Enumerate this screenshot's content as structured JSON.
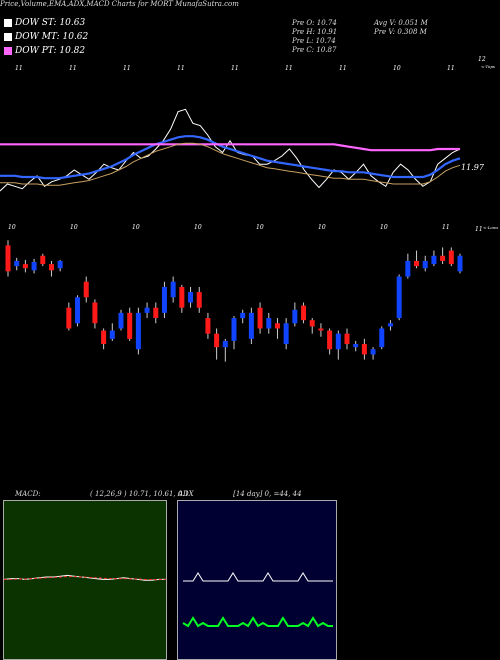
{
  "title": "Price,Volume,EMA,ADX,MACD Charts for MORT MunafaSutra.com",
  "legend": [
    {
      "label": "DOW ST: 10.63",
      "color": "#ffffff"
    },
    {
      "label": "DOW MT: 10.62",
      "color": "#ffffff"
    },
    {
      "label": "DOW PT: 10.82",
      "color": "#ff66ff"
    }
  ],
  "ohlc": {
    "open": "Pre   O: 10.74",
    "high": "Pre   H: 10.91",
    "low": "Pre   L: 10.74",
    "close": "Pre   C: 10.87",
    "avg_volume": "Avg V: 0.051  M",
    "prev_volume": "Pre   V: 0.308  M"
  },
  "macd_header": {
    "label": "MACD:",
    "values": "( 12,26,9 ) 10.71,  10.61,  0.1"
  },
  "adx_header": {
    "label": "ADX",
    "values": "[14  day] 0,  =44, 44"
  },
  "chart_data": [
    {
      "type": "line",
      "name": "price-ema-panel",
      "labels": {
        "top_right": "12",
        "top_right_sub": "<-Tops",
        "mid_right": "11.97",
        "bottom_right": "11",
        "bottom_right_sub": "<-Lows"
      },
      "top_ticks": [
        "11",
        "11",
        "11",
        "11",
        "11",
        "11",
        "11",
        "10",
        "11"
      ],
      "bottom_ticks": [
        "10",
        "10",
        "10",
        "10",
        "10",
        "10",
        "10",
        "11"
      ],
      "colors": {
        "close": "#ffffff",
        "ema_fast": "#3366ff",
        "ema_slow": "#ff66ff",
        "ema_mid": "#c8a060"
      },
      "series": [
        {
          "name": "close",
          "values": [
            11.62,
            11.68,
            11.66,
            11.64,
            11.7,
            11.75,
            11.66,
            11.7,
            11.72,
            11.75,
            11.8,
            11.76,
            11.72,
            11.78,
            11.85,
            11.82,
            11.8,
            11.88,
            11.95,
            11.9,
            11.92,
            11.98,
            12.05,
            12.15,
            12.3,
            12.32,
            12.2,
            12.18,
            12.1,
            12.0,
            11.95,
            12.05,
            11.95,
            11.93,
            11.92,
            11.85,
            11.85,
            11.88,
            11.92,
            11.98,
            11.9,
            11.8,
            11.72,
            11.65,
            11.72,
            11.8,
            11.78,
            11.72,
            11.78,
            11.85,
            11.75,
            11.7,
            11.66,
            11.78,
            11.85,
            11.8,
            11.72,
            11.66,
            11.7,
            11.85,
            11.9,
            11.95,
            11.98
          ]
        },
        {
          "name": "ema-fast",
          "values": [
            11.75,
            11.75,
            11.75,
            11.74,
            11.74,
            11.74,
            11.73,
            11.73,
            11.73,
            11.74,
            11.75,
            11.76,
            11.77,
            11.79,
            11.81,
            11.83,
            11.86,
            11.89,
            11.93,
            11.96,
            11.99,
            12.02,
            12.04,
            12.06,
            12.08,
            12.09,
            12.09,
            12.08,
            12.06,
            12.03,
            12.0,
            11.98,
            11.96,
            11.94,
            11.92,
            11.9,
            11.88,
            11.87,
            11.86,
            11.85,
            11.84,
            11.83,
            11.82,
            11.81,
            11.8,
            11.79,
            11.79,
            11.78,
            11.78,
            11.78,
            11.77,
            11.76,
            11.75,
            11.74,
            11.74,
            11.74,
            11.74,
            11.74,
            11.76,
            11.8,
            11.85,
            11.88,
            11.9
          ]
        },
        {
          "name": "ema-slow",
          "values": [
            12.02,
            12.02,
            12.02,
            12.02,
            12.02,
            12.02,
            12.02,
            12.02,
            12.02,
            12.02,
            12.02,
            12.02,
            12.02,
            12.02,
            12.02,
            12.02,
            12.02,
            12.02,
            12.02,
            12.02,
            12.02,
            12.02,
            12.02,
            12.02,
            12.02,
            12.02,
            12.02,
            12.02,
            12.02,
            12.02,
            12.02,
            12.02,
            12.02,
            12.02,
            12.02,
            12.02,
            12.02,
            12.02,
            12.02,
            12.02,
            12.02,
            12.02,
            12.02,
            12.02,
            12.02,
            12.02,
            12.01,
            12.0,
            11.99,
            11.98,
            11.97,
            11.97,
            11.97,
            11.97,
            11.97,
            11.97,
            11.97,
            11.97,
            11.97,
            11.98,
            11.98,
            11.98,
            11.98
          ]
        }
      ],
      "candles": [
        {
          "o": 11.6,
          "c": 11.35,
          "h": 11.65,
          "l": 11.3
        },
        {
          "o": 11.4,
          "c": 11.45,
          "h": 11.48,
          "l": 11.36
        },
        {
          "o": 11.42,
          "c": 11.38,
          "h": 11.46,
          "l": 11.34
        },
        {
          "o": 11.36,
          "c": 11.44,
          "h": 11.47,
          "l": 11.33
        },
        {
          "o": 11.5,
          "c": 11.42,
          "h": 11.52,
          "l": 11.4
        },
        {
          "o": 11.42,
          "c": 11.36,
          "h": 11.45,
          "l": 11.3
        },
        {
          "o": 11.38,
          "c": 11.45,
          "h": 11.46,
          "l": 11.35
        },
        {
          "o": 11.0,
          "c": 10.8,
          "h": 11.05,
          "l": 10.78
        },
        {
          "o": 10.85,
          "c": 11.1,
          "h": 11.12,
          "l": 10.82
        },
        {
          "o": 11.25,
          "c": 11.1,
          "h": 11.3,
          "l": 11.05
        },
        {
          "o": 11.05,
          "c": 10.85,
          "h": 11.08,
          "l": 10.8
        },
        {
          "o": 10.78,
          "c": 10.65,
          "h": 10.8,
          "l": 10.6
        },
        {
          "o": 10.7,
          "c": 10.78,
          "h": 10.85,
          "l": 10.68
        },
        {
          "o": 10.8,
          "c": 10.95,
          "h": 10.98,
          "l": 10.78
        },
        {
          "o": 10.95,
          "c": 10.7,
          "h": 11.0,
          "l": 10.68
        },
        {
          "o": 10.6,
          "c": 10.95,
          "h": 11.0,
          "l": 10.55
        },
        {
          "o": 10.95,
          "c": 11.0,
          "h": 11.05,
          "l": 10.9
        },
        {
          "o": 11.0,
          "c": 10.9,
          "h": 11.05,
          "l": 10.85
        },
        {
          "o": 10.95,
          "c": 11.2,
          "h": 11.25,
          "l": 10.9
        },
        {
          "o": 11.1,
          "c": 11.25,
          "h": 11.3,
          "l": 11.05
        },
        {
          "o": 11.2,
          "c": 11.0,
          "h": 11.22,
          "l": 10.95
        },
        {
          "o": 11.05,
          "c": 11.15,
          "h": 11.2,
          "l": 11.0
        },
        {
          "o": 11.15,
          "c": 11.0,
          "h": 11.2,
          "l": 10.95
        },
        {
          "o": 10.9,
          "c": 10.75,
          "h": 10.95,
          "l": 10.7
        },
        {
          "o": 10.75,
          "c": 10.62,
          "h": 10.8,
          "l": 10.5
        },
        {
          "o": 10.62,
          "c": 10.68,
          "h": 10.7,
          "l": 10.48
        },
        {
          "o": 10.68,
          "c": 10.9,
          "h": 10.92,
          "l": 10.6
        },
        {
          "o": 10.9,
          "c": 10.95,
          "h": 10.98,
          "l": 10.85
        },
        {
          "o": 10.7,
          "c": 10.95,
          "h": 11.0,
          "l": 10.65
        },
        {
          "o": 11.0,
          "c": 10.8,
          "h": 11.05,
          "l": 10.75
        },
        {
          "o": 10.8,
          "c": 10.9,
          "h": 10.95,
          "l": 10.75
        },
        {
          "o": 10.85,
          "c": 10.8,
          "h": 10.9,
          "l": 10.7
        },
        {
          "o": 10.65,
          "c": 10.85,
          "h": 10.9,
          "l": 10.6
        },
        {
          "o": 10.85,
          "c": 10.98,
          "h": 11.05,
          "l": 10.82
        },
        {
          "o": 11.02,
          "c": 10.88,
          "h": 11.05,
          "l": 10.85
        },
        {
          "o": 10.88,
          "c": 10.82,
          "h": 10.9,
          "l": 10.75
        },
        {
          "o": 10.8,
          "c": 10.78,
          "h": 10.85,
          "l": 10.72
        },
        {
          "o": 10.78,
          "c": 10.6,
          "h": 10.8,
          "l": 10.55
        },
        {
          "o": 10.6,
          "c": 10.75,
          "h": 10.78,
          "l": 10.5
        },
        {
          "o": 10.75,
          "c": 10.65,
          "h": 10.8,
          "l": 10.6
        },
        {
          "o": 10.62,
          "c": 10.65,
          "h": 10.68,
          "l": 10.58
        },
        {
          "o": 10.65,
          "c": 10.55,
          "h": 10.7,
          "l": 10.5
        },
        {
          "o": 10.55,
          "c": 10.6,
          "h": 10.62,
          "l": 10.5
        },
        {
          "o": 10.62,
          "c": 10.8,
          "h": 10.82,
          "l": 10.6
        },
        {
          "o": 10.82,
          "c": 10.85,
          "h": 10.88,
          "l": 10.78
        },
        {
          "o": 10.9,
          "c": 11.3,
          "h": 11.32,
          "l": 10.88
        },
        {
          "o": 11.3,
          "c": 11.45,
          "h": 11.52,
          "l": 11.28
        },
        {
          "o": 11.45,
          "c": 11.4,
          "h": 11.55,
          "l": 11.38
        },
        {
          "o": 11.38,
          "c": 11.45,
          "h": 11.5,
          "l": 11.35
        },
        {
          "o": 11.42,
          "c": 11.5,
          "h": 11.55,
          "l": 11.4
        },
        {
          "o": 11.5,
          "c": 11.45,
          "h": 11.58,
          "l": 11.42
        },
        {
          "o": 11.55,
          "c": 11.42,
          "h": 11.58,
          "l": 11.4
        },
        {
          "o": 11.35,
          "c": 11.5,
          "h": 11.52,
          "l": 11.33
        }
      ]
    },
    {
      "type": "line",
      "name": "macd-panel",
      "series": [
        {
          "name": "macd",
          "values": [
            0.02,
            0.03,
            0.03,
            0.02,
            0.03,
            0.04,
            0.05,
            0.05,
            0.06,
            0.07,
            0.06,
            0.05,
            0.04,
            0.03,
            0.02,
            0.02,
            0.03,
            0.04,
            0.03,
            0.02,
            0.01,
            0.01,
            0.02,
            0.02
          ]
        },
        {
          "name": "signal",
          "values": [
            0.02,
            0.02,
            0.025,
            0.025,
            0.03,
            0.035,
            0.04,
            0.045,
            0.05,
            0.055,
            0.055,
            0.05,
            0.045,
            0.04,
            0.035,
            0.03,
            0.03,
            0.03,
            0.028,
            0.025,
            0.02,
            0.018,
            0.018,
            0.02
          ]
        }
      ]
    },
    {
      "type": "line",
      "name": "adx-panel",
      "series": [
        {
          "name": "adx",
          "values": [
            0.5,
            0.5,
            0.5,
            0.5,
            0.5,
            0.5,
            0.5,
            0.5,
            0.5,
            0.5,
            0.5,
            0.5,
            0.5,
            0.5,
            0.5,
            0.5,
            0.5,
            0.5,
            0.5,
            0.5,
            0.5,
            0.5,
            0.5,
            0.5
          ]
        },
        {
          "name": "plus-di",
          "values": [
            0.1,
            0.1,
            0.1,
            0.1,
            0.1,
            0.1,
            0.1,
            0.1,
            0.1,
            0.1,
            0.1,
            0.1,
            0.1,
            0.1,
            0.1,
            0.1,
            0.1,
            0.1,
            0.1,
            0.1,
            0.1,
            0.1,
            0.1,
            0.1
          ]
        }
      ]
    }
  ]
}
